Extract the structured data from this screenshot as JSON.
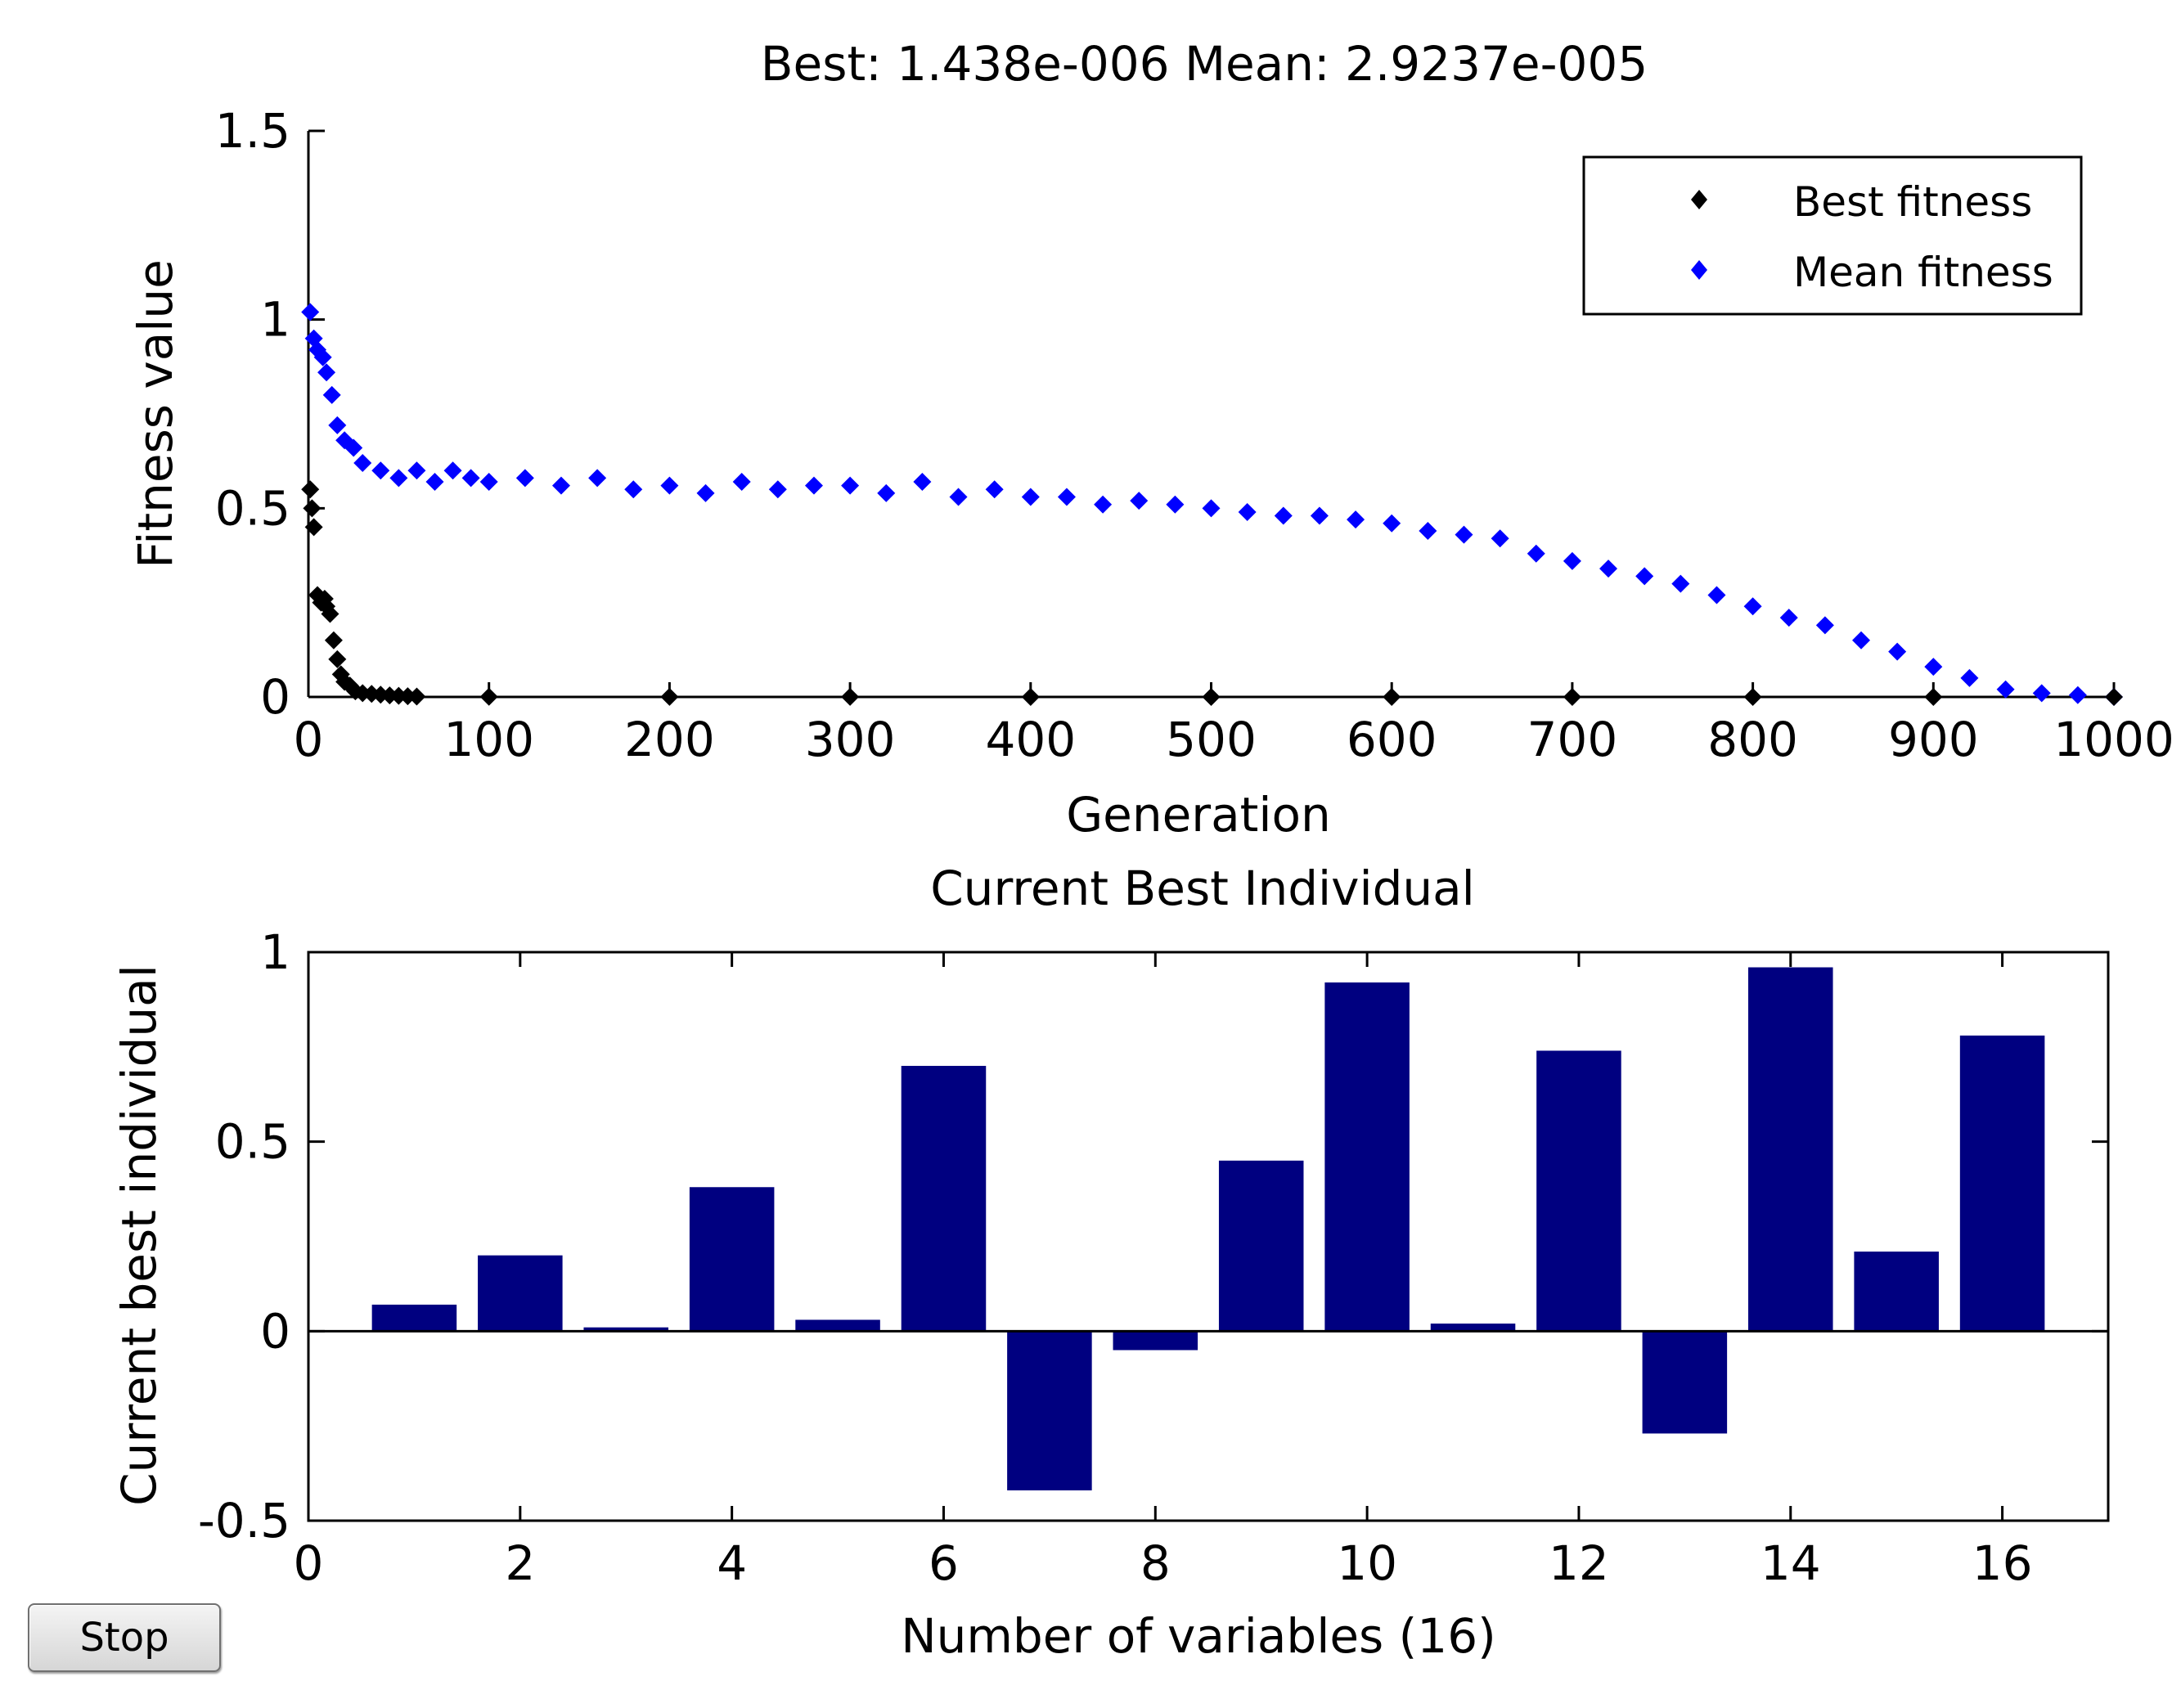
{
  "window": {
    "stop_label": "Stop"
  },
  "colors": {
    "best_marker": "#000000",
    "mean_marker": "#0000ff",
    "bar_fill": "#000080",
    "axis": "#000000"
  },
  "chart_data": [
    {
      "type": "scatter",
      "title": "Best: 1.438e-006 Mean: 2.9237e-005",
      "xlabel": "Generation",
      "ylabel": "Fitness value",
      "xlim": [
        0,
        1000
      ],
      "ylim": [
        0,
        1.5
      ],
      "xticks": [
        0,
        100,
        200,
        300,
        400,
        500,
        600,
        700,
        800,
        900,
        1000
      ],
      "xtick_labels": [
        "0",
        "100",
        "200",
        "300",
        "400",
        "500",
        "600",
        "700",
        "800",
        "900",
        "1000"
      ],
      "yticks": [
        0,
        0.5,
        1,
        1.5
      ],
      "ytick_labels": [
        "0",
        "0.5",
        "1",
        "1.5"
      ],
      "legend": {
        "position": "top-right",
        "entries": [
          "Best fitness",
          "Mean fitness"
        ]
      },
      "series": [
        {
          "name": "Best fitness",
          "marker": "diamond",
          "x": [
            1,
            2,
            3,
            5,
            7,
            9,
            10,
            12,
            14,
            16,
            18,
            20,
            23,
            26,
            30,
            35,
            40,
            45,
            50,
            55,
            60,
            100,
            200,
            300,
            400,
            500,
            600,
            700,
            800,
            900,
            1000
          ],
          "y": [
            0.55,
            0.5,
            0.45,
            0.27,
            0.25,
            0.26,
            0.24,
            0.22,
            0.15,
            0.1,
            0.06,
            0.04,
            0.03,
            0.015,
            0.01,
            0.008,
            0.006,
            0.004,
            0.003,
            0.002,
            0.001,
            0.0005,
            0.0003,
            0.0002,
            0.0001,
            5e-05,
            3e-05,
            2e-05,
            1e-05,
            5e-06,
            1.438e-06
          ]
        },
        {
          "name": "Mean fitness",
          "marker": "diamond",
          "x": [
            1,
            3,
            5,
            8,
            10,
            13,
            16,
            20,
            25,
            30,
            40,
            50,
            60,
            70,
            80,
            90,
            100,
            120,
            140,
            160,
            180,
            200,
            220,
            240,
            260,
            280,
            300,
            320,
            340,
            360,
            380,
            400,
            420,
            440,
            460,
            480,
            500,
            520,
            540,
            560,
            580,
            600,
            620,
            640,
            660,
            680,
            700,
            720,
            740,
            760,
            780,
            800,
            820,
            840,
            860,
            880,
            900,
            920,
            940,
            960,
            980,
            1000
          ],
          "y": [
            1.02,
            0.95,
            0.92,
            0.9,
            0.86,
            0.8,
            0.72,
            0.68,
            0.66,
            0.62,
            0.6,
            0.58,
            0.6,
            0.57,
            0.6,
            0.58,
            0.57,
            0.58,
            0.56,
            0.58,
            0.55,
            0.56,
            0.54,
            0.57,
            0.55,
            0.56,
            0.56,
            0.54,
            0.57,
            0.53,
            0.55,
            0.53,
            0.53,
            0.51,
            0.52,
            0.51,
            0.5,
            0.49,
            0.48,
            0.48,
            0.47,
            0.46,
            0.44,
            0.43,
            0.42,
            0.38,
            0.36,
            0.34,
            0.32,
            0.3,
            0.27,
            0.24,
            0.21,
            0.19,
            0.15,
            0.12,
            0.08,
            0.05,
            0.02,
            0.01,
            0.005,
            3e-05
          ]
        }
      ]
    },
    {
      "type": "bar",
      "title": "Current Best Individual",
      "xlabel": "Number of variables (16)",
      "ylabel": "Current best individual",
      "xlim": [
        0,
        17
      ],
      "ylim": [
        -0.5,
        1
      ],
      "xticks": [
        0,
        2,
        4,
        6,
        8,
        10,
        12,
        14,
        16
      ],
      "xtick_labels": [
        "0",
        "2",
        "4",
        "6",
        "8",
        "10",
        "12",
        "14",
        "16"
      ],
      "yticks": [
        -0.5,
        0,
        0.5,
        1
      ],
      "ytick_labels": [
        "-0.5",
        "0",
        "0.5",
        "1"
      ],
      "categories": [
        1,
        2,
        3,
        4,
        5,
        6,
        7,
        8,
        9,
        10,
        11,
        12,
        13,
        14,
        15,
        16
      ],
      "values": [
        0.07,
        0.2,
        0.01,
        0.38,
        0.03,
        0.7,
        -0.42,
        -0.05,
        0.45,
        0.92,
        0.02,
        0.74,
        -0.27,
        0.96,
        0.21,
        0.78
      ]
    }
  ]
}
